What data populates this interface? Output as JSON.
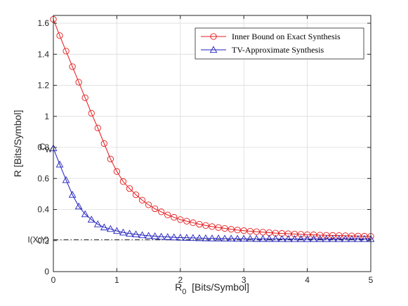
{
  "chart_data": {
    "type": "line",
    "xlabel_main": "R",
    "xlabel_sub": "0",
    "xlabel_rest": "  [Bits/Symbol]",
    "ylabel": "R  [Bits/Symbol]",
    "xlim": [
      0,
      5
    ],
    "ylim": [
      0,
      1.65
    ],
    "grid": true,
    "legend_position": "top-right",
    "xticks": [
      "0",
      "1",
      "2",
      "3",
      "4",
      "5"
    ],
    "yticks": [
      "0",
      "0.2",
      "0.4",
      "0.6",
      "0.8",
      "1",
      "1.2",
      "1.4",
      "1.6"
    ],
    "xtick_values": [
      0,
      1,
      2,
      3,
      4,
      5
    ],
    "ytick_values": [
      0,
      0.2,
      0.4,
      0.6,
      0.8,
      1.0,
      1.2,
      1.4,
      1.6
    ],
    "x": [
      0,
      0.1,
      0.2,
      0.3,
      0.4,
      0.5,
      0.6,
      0.7,
      0.8,
      0.9,
      1.0,
      1.1,
      1.2,
      1.3,
      1.4,
      1.5,
      1.6,
      1.7,
      1.8,
      1.9,
      2.0,
      2.1,
      2.2,
      2.3,
      2.4,
      2.5,
      2.6,
      2.7,
      2.8,
      2.9,
      3.0,
      3.1,
      3.2,
      3.3,
      3.4,
      3.5,
      3.6,
      3.7,
      3.8,
      3.9,
      4.0,
      4.1,
      4.2,
      4.3,
      4.4,
      4.5,
      4.6,
      4.7,
      4.8,
      4.9,
      5.0
    ],
    "series": [
      {
        "name": "Inner Bound on Exact Synthesis",
        "color": "#e41a1c",
        "marker": "circle",
        "values": [
          1.625,
          1.52,
          1.42,
          1.32,
          1.22,
          1.12,
          1.02,
          0.925,
          0.825,
          0.725,
          0.645,
          0.58,
          0.535,
          0.495,
          0.46,
          0.43,
          0.405,
          0.385,
          0.365,
          0.35,
          0.335,
          0.325,
          0.315,
          0.305,
          0.297,
          0.29,
          0.284,
          0.278,
          0.273,
          0.268,
          0.264,
          0.26,
          0.257,
          0.254,
          0.251,
          0.248,
          0.246,
          0.244,
          0.242,
          0.24,
          0.238,
          0.237,
          0.235,
          0.234,
          0.233,
          0.232,
          0.231,
          0.23,
          0.229,
          0.228,
          0.227
        ]
      },
      {
        "name": "TV-Approximate Synthesis",
        "color": "#1f1fbf",
        "marker": "triangle",
        "values": [
          0.795,
          0.69,
          0.59,
          0.495,
          0.42,
          0.37,
          0.335,
          0.305,
          0.285,
          0.275,
          0.262,
          0.252,
          0.245,
          0.24,
          0.235,
          0.231,
          0.228,
          0.225,
          0.223,
          0.221,
          0.219,
          0.218,
          0.217,
          0.216,
          0.215,
          0.214,
          0.214,
          0.213,
          0.213,
          0.212,
          0.212,
          0.212,
          0.211,
          0.211,
          0.211,
          0.211,
          0.21,
          0.21,
          0.21,
          0.21,
          0.21,
          0.21,
          0.21,
          0.21,
          0.21,
          0.21,
          0.21,
          0.21,
          0.21,
          0.21,
          0.21
        ]
      }
    ],
    "reference_line": {
      "label": "I(X;Y)",
      "value": 0.205,
      "style": "dash-dot",
      "color": "#000000"
    },
    "annotation": {
      "label_main": "C",
      "label_sub": "W",
      "value": 0.795
    }
  }
}
